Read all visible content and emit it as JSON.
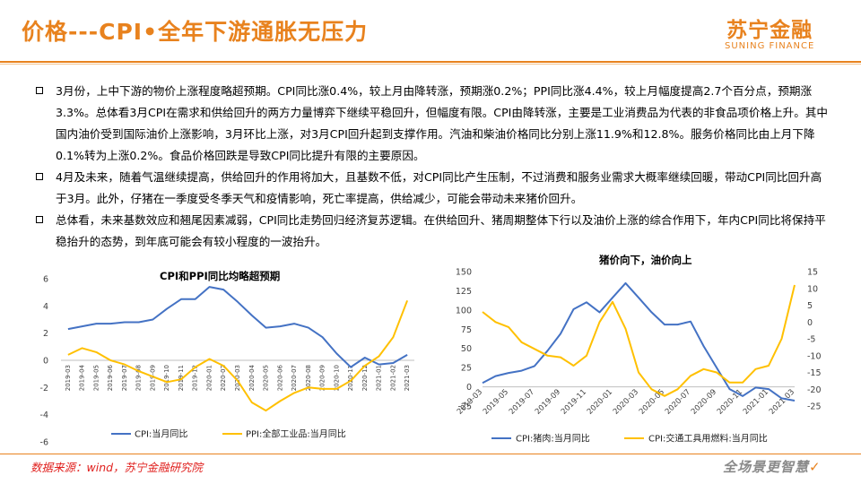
{
  "header": {
    "title": "价格---CPI•全年下游通胀无压力",
    "logo_cn": "苏宁金融",
    "logo_en": "SUNING FINANCE"
  },
  "bullets": [
    "3月份，上中下游的物价上涨程度略超预期。CPI同比涨0.4%，较上月由降转涨，预期涨0.2%；PPI同比涨4.4%，较上月幅度提高2.7个百分点，预期涨3.3%。总体看3月CPI在需求和供给回升的两方力量博弈下继续平稳回升，但幅度有限。CPI由降转涨，主要是工业消费品为代表的非食品项价格上升。其中国内油价受到国际油价上涨影响，3月环比上涨，对3月CPI回升起到支撑作用。汽油和柴油价格同比分别上涨11.9%和12.8%。服务价格同比由上月下降0.1%转为上涨0.2%。食品价格回跌是导致CPI同比提升有限的主要原因。",
    "4月及未来，随着气温继续提高，供给回升的作用将加大，且基数不低，对CPI同比产生压制，不过消费和服务业需求大概率继续回暖，带动CPI同比回升高于3月。此外，仔猪在一季度受冬季天气和疫情影响，死亡率提高，供给减少，可能会带动未来猪价回升。",
    "总体看，未来基数效应和翘尾因素减弱，CPI同比走势回归经济复苏逻辑。在供给回升、猪周期整体下行以及油价上涨的综合作用下，年内CPI同比将保持平稳抬升的态势，到年底可能会有较小程度的一波抬升。"
  ],
  "footer": {
    "source": "数据来源：wind，苏宁金融研究院",
    "slogan": "全场景更智慧"
  },
  "colors": {
    "accent": "#E8821E",
    "series_blue": "#4472C4",
    "series_yellow": "#FFC000",
    "source_red": "#E0201E"
  },
  "chart_data": [
    {
      "type": "line",
      "title": "CPI和PPI同比均略超预期",
      "x": [
        "2019-03",
        "2019-04",
        "2019-05",
        "2019-06",
        "2019-07",
        "2019-08",
        "2019-09",
        "2019-10",
        "2019-11",
        "2019-12",
        "2020-01",
        "2020-02",
        "2020-03",
        "2020-04",
        "2020-05",
        "2020-06",
        "2020-07",
        "2020-08",
        "2020-09",
        "2020-10",
        "2020-11",
        "2020-12",
        "2021-01",
        "2021-02",
        "2021-03"
      ],
      "ylim": [
        -6,
        6
      ],
      "yticks": [
        -6,
        -4,
        -2,
        0,
        2,
        4,
        6
      ],
      "series": [
        {
          "name": "CPI:当月同比",
          "color": "#4472C4",
          "values": [
            2.3,
            2.5,
            2.7,
            2.7,
            2.8,
            2.8,
            3.0,
            3.8,
            4.5,
            4.5,
            5.4,
            5.2,
            4.3,
            3.3,
            2.4,
            2.5,
            2.7,
            2.4,
            1.7,
            0.5,
            -0.5,
            0.2,
            -0.3,
            -0.2,
            0.4
          ]
        },
        {
          "name": "PPI:全部工业品:当月同比",
          "color": "#FFC000",
          "values": [
            0.4,
            0.9,
            0.6,
            0.0,
            -0.3,
            -0.8,
            -1.2,
            -1.6,
            -1.4,
            -0.5,
            0.1,
            -0.4,
            -1.5,
            -3.1,
            -3.7,
            -3.0,
            -2.4,
            -2.0,
            -2.1,
            -2.1,
            -1.5,
            -0.4,
            0.3,
            1.7,
            4.4
          ]
        }
      ]
    },
    {
      "type": "line",
      "title": "猪价向下，油价向上",
      "x": [
        "2019-03",
        "2019-04",
        "2019-05",
        "2019-06",
        "2019-07",
        "2019-08",
        "2019-09",
        "2019-10",
        "2019-11",
        "2019-12",
        "2020-01",
        "2020-02",
        "2020-03",
        "2020-04",
        "2020-05",
        "2020-06",
        "2020-07",
        "2020-08",
        "2020-09",
        "2020-10",
        "2020-11",
        "2020-12",
        "2021-01",
        "2021-02",
        "2021-03"
      ],
      "xticks": [
        "2019-03",
        "2019-05",
        "2019-07",
        "2019-09",
        "2019-11",
        "2020-01",
        "2020-03",
        "2020-05",
        "2020-07",
        "2020-09",
        "2020-11",
        "2021-01",
        "2021-03"
      ],
      "ylim_left": [
        -25,
        150
      ],
      "yticks_left": [
        -25,
        0,
        25,
        50,
        75,
        100,
        125,
        150
      ],
      "ylim_right": [
        -25,
        15
      ],
      "yticks_right": [
        -25,
        -20,
        -15,
        -10,
        -5,
        0,
        5,
        10,
        15
      ],
      "series": [
        {
          "name": "CPI:猪肉:当月同比",
          "axis": "left",
          "color": "#4472C4",
          "values": [
            5,
            14,
            18,
            21,
            27,
            47,
            69,
            101,
            110,
            97,
            116,
            135,
            116,
            97,
            81,
            81,
            85,
            53,
            25,
            -3,
            -12,
            -1,
            -3,
            -15,
            -18
          ]
        },
        {
          "name": "CPI:交通工具用燃料:当月同比",
          "axis": "right",
          "color": "#FFC000",
          "values": [
            3,
            0,
            -1.5,
            -6,
            -8,
            -10,
            -10.5,
            -13,
            -10,
            0,
            6,
            -2,
            -15,
            -20,
            -22,
            -20,
            -16,
            -14,
            -15,
            -18,
            -18,
            -14,
            -13,
            -5,
            11
          ]
        }
      ]
    }
  ]
}
